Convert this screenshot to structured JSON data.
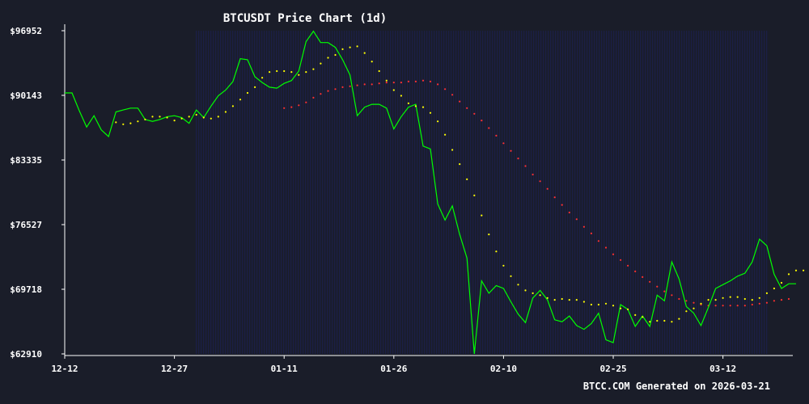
{
  "chart_data": {
    "type": "line",
    "title": "BTCUSDT Price Chart (1d)",
    "footer": "BTCC.COM Generated on 2026-03-21",
    "x_ticks": [
      {
        "label": "12-12",
        "day": 0
      },
      {
        "label": "12-27",
        "day": 15
      },
      {
        "label": "01-11",
        "day": 30
      },
      {
        "label": "01-26",
        "day": 45
      },
      {
        "label": "02-10",
        "day": 60
      },
      {
        "label": "02-25",
        "day": 75
      },
      {
        "label": "03-12",
        "day": 90
      }
    ],
    "y_ticks": [
      {
        "label": "$96952",
        "value": 96952
      },
      {
        "label": "$90143",
        "value": 90143
      },
      {
        "label": "$83335",
        "value": 83335
      },
      {
        "label": "$76527",
        "value": 76527
      },
      {
        "label": "$69718",
        "value": 69718
      },
      {
        "label": "$62910",
        "value": 62910
      }
    ],
    "ylim": [
      62910,
      96952
    ],
    "xlim": [
      0,
      99
    ],
    "colors": {
      "background": "#1a1d29",
      "band": "#1c2050",
      "price": "#00ff00",
      "ma_short": "#ffff00",
      "ma_long": "#ff3030",
      "axis": "#ffffff"
    },
    "series": [
      {
        "key": "price",
        "style": "line",
        "start_day": 0,
        "values": [
          90400,
          90400,
          88500,
          86800,
          88000,
          86500,
          85800,
          88400,
          88600,
          88800,
          88800,
          87600,
          87400,
          87600,
          87900,
          88000,
          87800,
          87200,
          88600,
          87800,
          89000,
          90100,
          90700,
          91600,
          94000,
          93900,
          92100,
          91500,
          91000,
          90900,
          91400,
          91700,
          92700,
          95800,
          96900,
          95700,
          95700,
          95200,
          93900,
          92300,
          88000,
          88900,
          89200,
          89200,
          88800,
          86600,
          87900,
          88900,
          89200,
          84800,
          84500,
          78700,
          77000,
          78500,
          75500,
          73000,
          62910,
          70600,
          69300,
          70100,
          69800,
          68400,
          67100,
          66200,
          68800,
          69600,
          68600,
          66500,
          66300,
          66900,
          65900,
          65500,
          66100,
          67200,
          64400,
          64100,
          68100,
          67600,
          65800,
          66900,
          65800,
          69100,
          68500,
          72600,
          70800,
          67900,
          67200,
          65900,
          67800,
          69800,
          70200,
          70600,
          71100,
          71400,
          72600,
          75000,
          74300,
          71300,
          69800,
          70300,
          70300
        ]
      },
      {
        "key": "ma_short",
        "style": "dots",
        "start_day": 7,
        "values": [
          87300,
          87100,
          87200,
          87400,
          87600,
          87900,
          87900,
          87800,
          87500,
          87700,
          87900,
          88100,
          87800,
          87700,
          87900,
          88400,
          89000,
          89700,
          90400,
          91000,
          92000,
          92600,
          92700,
          92700,
          92600,
          92300,
          92600,
          92900,
          93500,
          94100,
          94400,
          95000,
          95200,
          95300,
          94600,
          93700,
          92700,
          91700,
          90700,
          90100,
          89300,
          89000,
          88900,
          88300,
          87400,
          86000,
          84400,
          82900,
          81300,
          79600,
          77500,
          75500,
          73700,
          72200,
          71100,
          70200,
          69600,
          69300,
          69100,
          68800,
          68600,
          68700,
          68600,
          68600,
          68400,
          68100,
          68100,
          68200,
          68000,
          67700,
          67600,
          67000,
          66800,
          66300,
          66400,
          66400,
          66300,
          66600,
          67400,
          67700,
          68200,
          68600,
          68600,
          68800,
          68900,
          68900,
          68700,
          68600,
          68800,
          69300,
          69800,
          70400,
          71300,
          71700,
          71700,
          71500,
          71500
        ]
      },
      {
        "key": "ma_long",
        "style": "dots",
        "start_day": 30,
        "values": [
          88800,
          88900,
          89100,
          89400,
          89900,
          90300,
          90600,
          90800,
          91000,
          91100,
          91200,
          91300,
          91300,
          91400,
          91500,
          91500,
          91500,
          91600,
          91600,
          91700,
          91600,
          91300,
          90800,
          90200,
          89500,
          88800,
          88200,
          87500,
          86700,
          85900,
          85100,
          84300,
          83500,
          82700,
          81800,
          81100,
          80300,
          79400,
          78600,
          77800,
          77100,
          76300,
          75600,
          74800,
          74100,
          73400,
          72800,
          72200,
          71600,
          71000,
          70500,
          70000,
          69500,
          69100,
          68700,
          68500,
          68300,
          68100,
          68000,
          68000,
          68000,
          68000,
          68000,
          68000,
          68100,
          68200,
          68300,
          68500,
          68600,
          68700
        ]
      }
    ]
  }
}
